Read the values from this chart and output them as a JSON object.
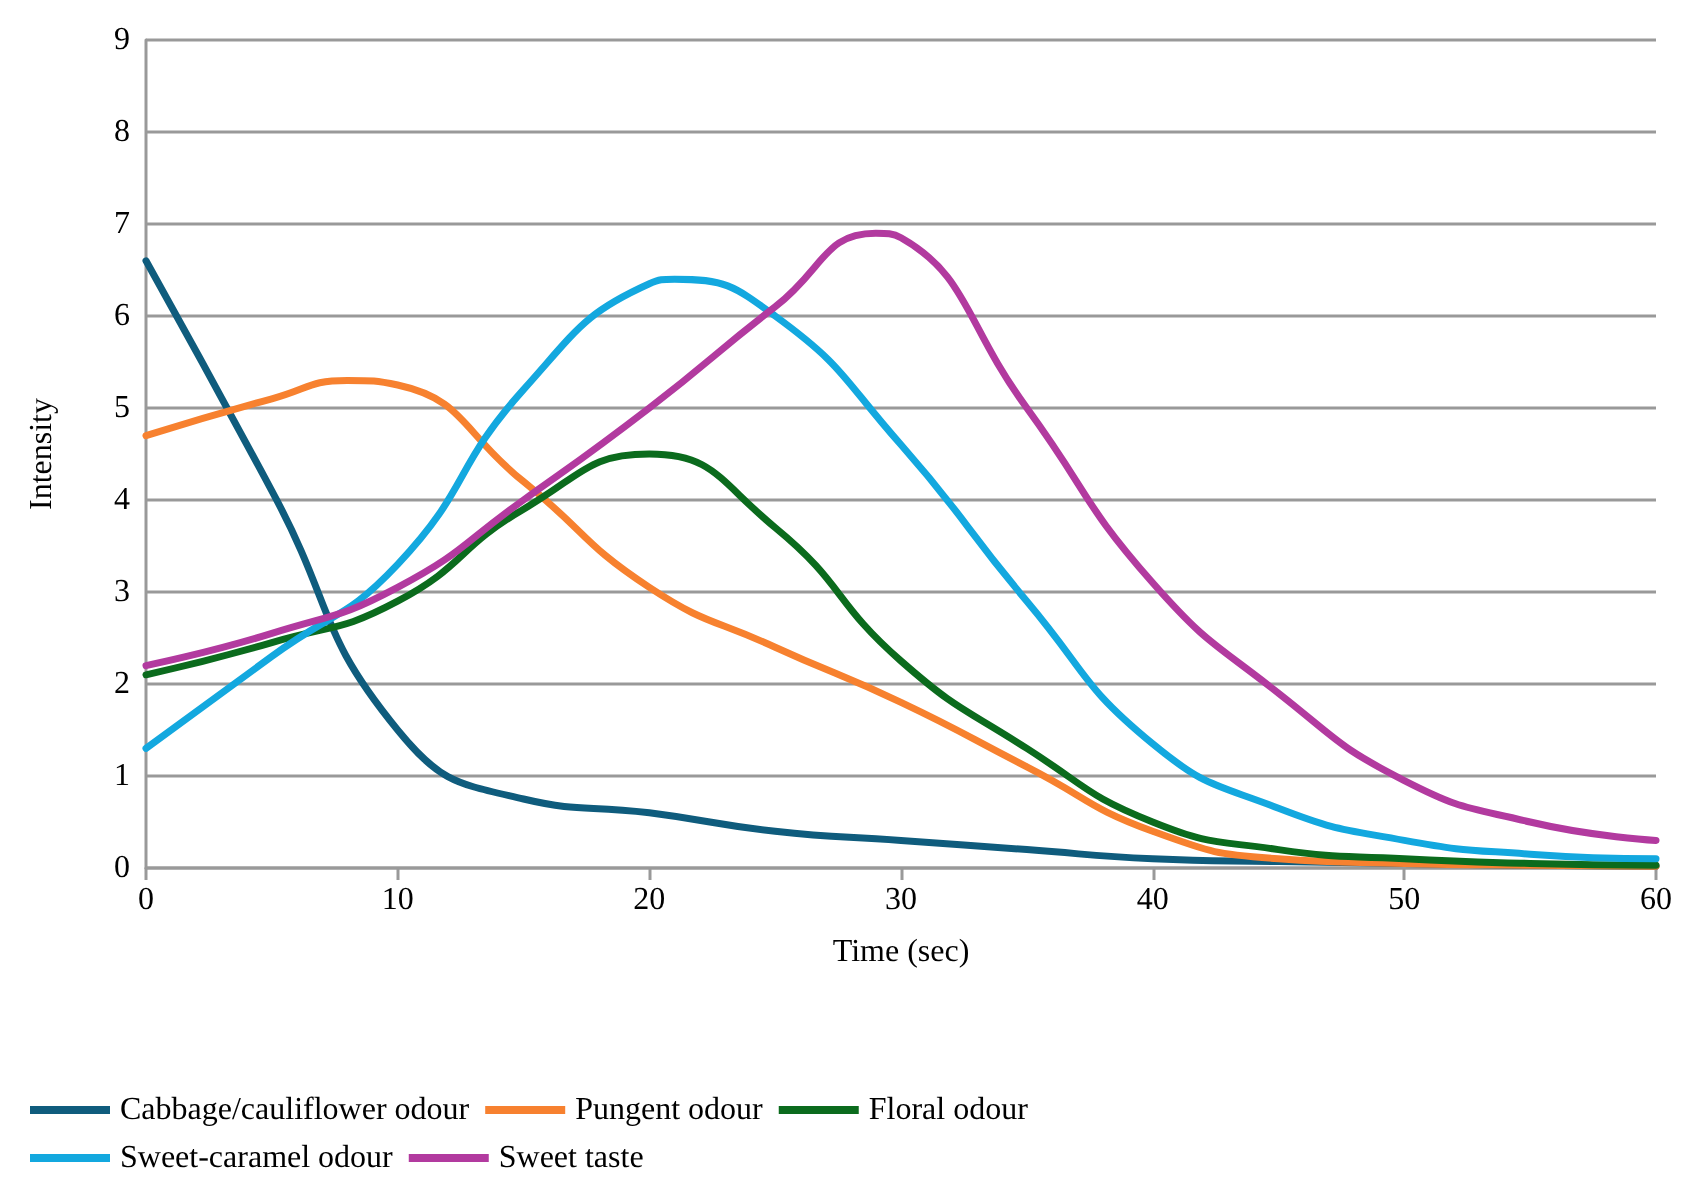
{
  "chart_data": {
    "type": "line",
    "xlabel": "Time (sec)",
    "ylabel": "Intensity",
    "xlim": [
      0,
      60
    ],
    "xticks": [
      0,
      10,
      20,
      30,
      40,
      50,
      60
    ],
    "ylim": [
      0,
      9
    ],
    "yticks": [
      0,
      1,
      2,
      3,
      4,
      5,
      6,
      7,
      8,
      9
    ],
    "grid": "y",
    "legend": "bottom",
    "marker": "none",
    "line_style": "solid",
    "series": [
      {
        "name": "Cabbage/cauliflower odour",
        "color": "#0f5c7d",
        "x": [
          0,
          5,
          10,
          15,
          20,
          25,
          30,
          35,
          40,
          45,
          50,
          55,
          60
        ],
        "values": [
          6.6,
          4.1,
          1.5,
          0.75,
          0.6,
          0.4,
          0.3,
          0.2,
          0.1,
          0.07,
          0.05,
          0.03,
          0.02
        ]
      },
      {
        "name": "Pungent odour",
        "color": "#f7812f",
        "x": [
          0,
          5,
          8,
          10,
          15,
          20,
          25,
          30,
          35,
          40,
          45,
          50,
          55,
          60
        ],
        "values": [
          4.7,
          5.1,
          5.3,
          5.25,
          4.2,
          3.05,
          2.4,
          1.8,
          1.1,
          0.4,
          0.1,
          0.05,
          0.03,
          0.02
        ]
      },
      {
        "name": "Floral odour",
        "color": "#0b6b1d",
        "x": [
          0,
          5,
          10,
          15,
          20,
          25,
          30,
          35,
          40,
          45,
          50,
          55,
          60
        ],
        "values": [
          2.1,
          2.45,
          2.9,
          3.9,
          4.5,
          3.7,
          2.25,
          1.3,
          0.5,
          0.2,
          0.1,
          0.05,
          0.03
        ]
      },
      {
        "name": "Sweet-caramel odour",
        "color": "#13a8df",
        "x": [
          0,
          5,
          10,
          15,
          20,
          21,
          25,
          30,
          35,
          40,
          45,
          50,
          55,
          60
        ],
        "values": [
          1.3,
          2.3,
          3.3,
          5.2,
          6.35,
          6.4,
          6.0,
          4.6,
          2.9,
          1.35,
          0.65,
          0.3,
          0.15,
          0.1
        ]
      },
      {
        "name": "Sweet taste",
        "color": "#b23a9f",
        "x": [
          0,
          5,
          10,
          15,
          20,
          25,
          29,
          30,
          35,
          40,
          45,
          50,
          55,
          60
        ],
        "values": [
          2.2,
          2.55,
          3.05,
          4.0,
          5.0,
          6.1,
          6.9,
          6.85,
          5.0,
          3.1,
          1.9,
          0.95,
          0.5,
          0.3
        ]
      }
    ]
  }
}
